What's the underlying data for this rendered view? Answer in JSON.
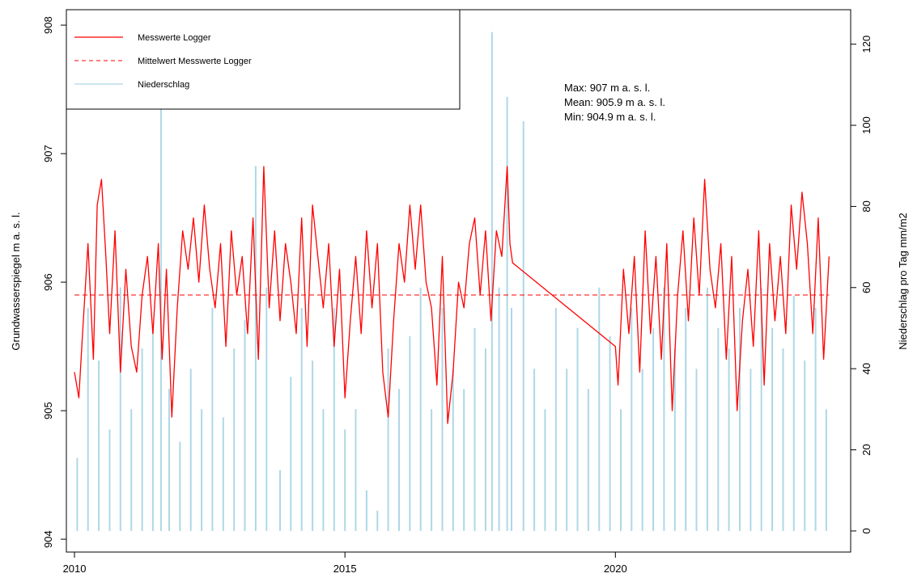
{
  "chart_data": {
    "type": "line",
    "title": "",
    "xlabel": "",
    "ylabel_left": "Grundwasserspiegel m a. s. l.",
    "ylabel_right": "Niederschlag pro Tag mm/m2",
    "x_range": [
      2009.85,
      2024.35
    ],
    "x_ticks": [
      2010,
      2015,
      2020
    ],
    "y_left_range": [
      903.9,
      908.12
    ],
    "y_left_ticks": [
      904,
      905,
      906,
      907,
      908
    ],
    "y_right_range": [
      -5.2,
      128.5
    ],
    "y_right_ticks": [
      0,
      20,
      40,
      60,
      80,
      100,
      120
    ],
    "grid": false,
    "legend_position": "top-left",
    "legend": [
      {
        "label": "Messwerte Logger",
        "style": "solid",
        "color": "#ff0000"
      },
      {
        "label": "Mittelwert Messwerte Logger",
        "style": "dashed",
        "color": "#ff0000"
      },
      {
        "label": "Niederschlag",
        "style": "solid",
        "color": "#add8e6"
      }
    ],
    "annotation_lines": [
      "Max:  907 m a. s. l.",
      "Mean:  905.9 m a. s. l.",
      "Min:  904.9 m a. s. l."
    ],
    "mean_value": 905.9,
    "series": [
      {
        "name": "Messwerte Logger",
        "axis": "left",
        "color": "#ff0000",
        "x": [
          2010.0,
          2010.08,
          2010.15,
          2010.25,
          2010.35,
          2010.42,
          2010.5,
          2010.58,
          2010.65,
          2010.75,
          2010.85,
          2010.95,
          2011.05,
          2011.15,
          2011.25,
          2011.35,
          2011.45,
          2011.55,
          2011.62,
          2011.7,
          2011.8,
          2011.9,
          2012.0,
          2012.1,
          2012.2,
          2012.3,
          2012.4,
          2012.5,
          2012.6,
          2012.7,
          2012.8,
          2012.9,
          2013.0,
          2013.1,
          2013.2,
          2013.3,
          2013.4,
          2013.5,
          2013.6,
          2013.7,
          2013.8,
          2013.9,
          2014.0,
          2014.1,
          2014.2,
          2014.3,
          2014.4,
          2014.5,
          2014.6,
          2014.7,
          2014.8,
          2014.9,
          2015.0,
          2015.1,
          2015.2,
          2015.3,
          2015.4,
          2015.5,
          2015.6,
          2015.7,
          2015.8,
          2015.9,
          2016.0,
          2016.1,
          2016.2,
          2016.3,
          2016.4,
          2016.5,
          2016.6,
          2016.7,
          2016.8,
          2016.9,
          2017.0,
          2017.1,
          2017.2,
          2017.3,
          2017.4,
          2017.5,
          2017.6,
          2017.7,
          2017.8,
          2017.9,
          2018.0,
          2018.05,
          2018.1,
          2020.0,
          2020.05,
          2020.15,
          2020.25,
          2020.35,
          2020.45,
          2020.55,
          2020.65,
          2020.75,
          2020.85,
          2020.95,
          2021.05,
          2021.15,
          2021.25,
          2021.35,
          2021.45,
          2021.55,
          2021.65,
          2021.75,
          2021.85,
          2021.95,
          2022.05,
          2022.15,
          2022.25,
          2022.35,
          2022.45,
          2022.55,
          2022.65,
          2022.75,
          2022.85,
          2022.95,
          2023.05,
          2023.15,
          2023.25,
          2023.35,
          2023.45,
          2023.55,
          2023.65,
          2023.75,
          2023.85,
          2023.95
        ],
        "y": [
          905.3,
          905.1,
          905.6,
          906.3,
          905.4,
          906.6,
          906.8,
          906.2,
          905.6,
          906.4,
          905.3,
          906.1,
          905.5,
          905.3,
          905.9,
          906.2,
          905.6,
          906.3,
          905.4,
          906.1,
          904.95,
          905.8,
          906.4,
          906.1,
          906.5,
          906.0,
          906.6,
          906.1,
          905.8,
          906.3,
          905.5,
          906.4,
          905.9,
          906.2,
          905.6,
          906.5,
          905.4,
          906.9,
          905.8,
          906.4,
          905.7,
          906.3,
          906.0,
          905.6,
          906.5,
          905.5,
          906.6,
          906.2,
          905.8,
          906.3,
          905.5,
          906.1,
          905.1,
          905.7,
          906.2,
          905.6,
          906.4,
          905.8,
          906.3,
          905.3,
          904.95,
          905.7,
          906.3,
          906.0,
          906.6,
          906.1,
          906.6,
          906.0,
          905.8,
          905.2,
          906.2,
          904.9,
          905.3,
          906.0,
          905.8,
          906.3,
          906.5,
          905.9,
          906.4,
          905.7,
          906.4,
          906.2,
          906.9,
          906.3,
          906.15,
          905.5,
          905.2,
          906.1,
          905.6,
          906.2,
          905.3,
          906.4,
          905.6,
          906.2,
          905.4,
          906.3,
          905.0,
          905.9,
          906.4,
          905.7,
          906.5,
          905.9,
          906.8,
          906.1,
          905.8,
          906.3,
          905.4,
          906.2,
          905.0,
          905.7,
          906.1,
          905.5,
          906.4,
          905.2,
          906.3,
          905.7,
          906.2,
          905.6,
          906.6,
          906.1,
          906.7,
          906.3,
          905.6,
          906.5,
          905.4,
          906.2
        ]
      },
      {
        "name": "Niederschlag",
        "axis": "right",
        "color": "#add8e6",
        "x": [
          2010.05,
          2010.25,
          2010.45,
          2010.65,
          2010.85,
          2011.05,
          2011.25,
          2011.45,
          2011.6,
          2011.75,
          2011.95,
          2012.15,
          2012.35,
          2012.55,
          2012.75,
          2012.95,
          2013.15,
          2013.35,
          2013.55,
          2013.8,
          2014.0,
          2014.2,
          2014.4,
          2014.6,
          2014.8,
          2015.0,
          2015.2,
          2015.4,
          2015.6,
          2015.8,
          2016.0,
          2016.2,
          2016.4,
          2016.6,
          2016.8,
          2017.0,
          2017.2,
          2017.4,
          2017.6,
          2017.72,
          2017.85,
          2018.0,
          2018.08,
          2018.3,
          2018.5,
          2018.7,
          2018.9,
          2019.1,
          2019.3,
          2019.5,
          2019.7,
          2019.9,
          2020.1,
          2020.3,
          2020.5,
          2020.7,
          2020.9,
          2021.1,
          2021.3,
          2021.5,
          2021.7,
          2021.9,
          2022.1,
          2022.3,
          2022.5,
          2022.7,
          2022.9,
          2023.1,
          2023.3,
          2023.5,
          2023.7,
          2023.9
        ],
        "values": [
          18,
          55,
          42,
          25,
          60,
          30,
          45,
          50,
          125,
          35,
          22,
          40,
          30,
          55,
          28,
          45,
          52,
          90,
          60,
          15,
          38,
          55,
          42,
          30,
          55,
          25,
          30,
          10,
          5,
          45,
          35,
          48,
          60,
          30,
          55,
          40,
          35,
          50,
          45,
          123,
          60,
          107,
          55,
          101,
          40,
          30,
          55,
          40,
          50,
          35,
          60,
          48,
          30,
          55,
          40,
          50,
          60,
          45,
          55,
          40,
          60,
          50,
          45,
          55,
          40,
          60,
          50,
          45,
          58,
          42,
          55,
          30
        ]
      }
    ]
  }
}
